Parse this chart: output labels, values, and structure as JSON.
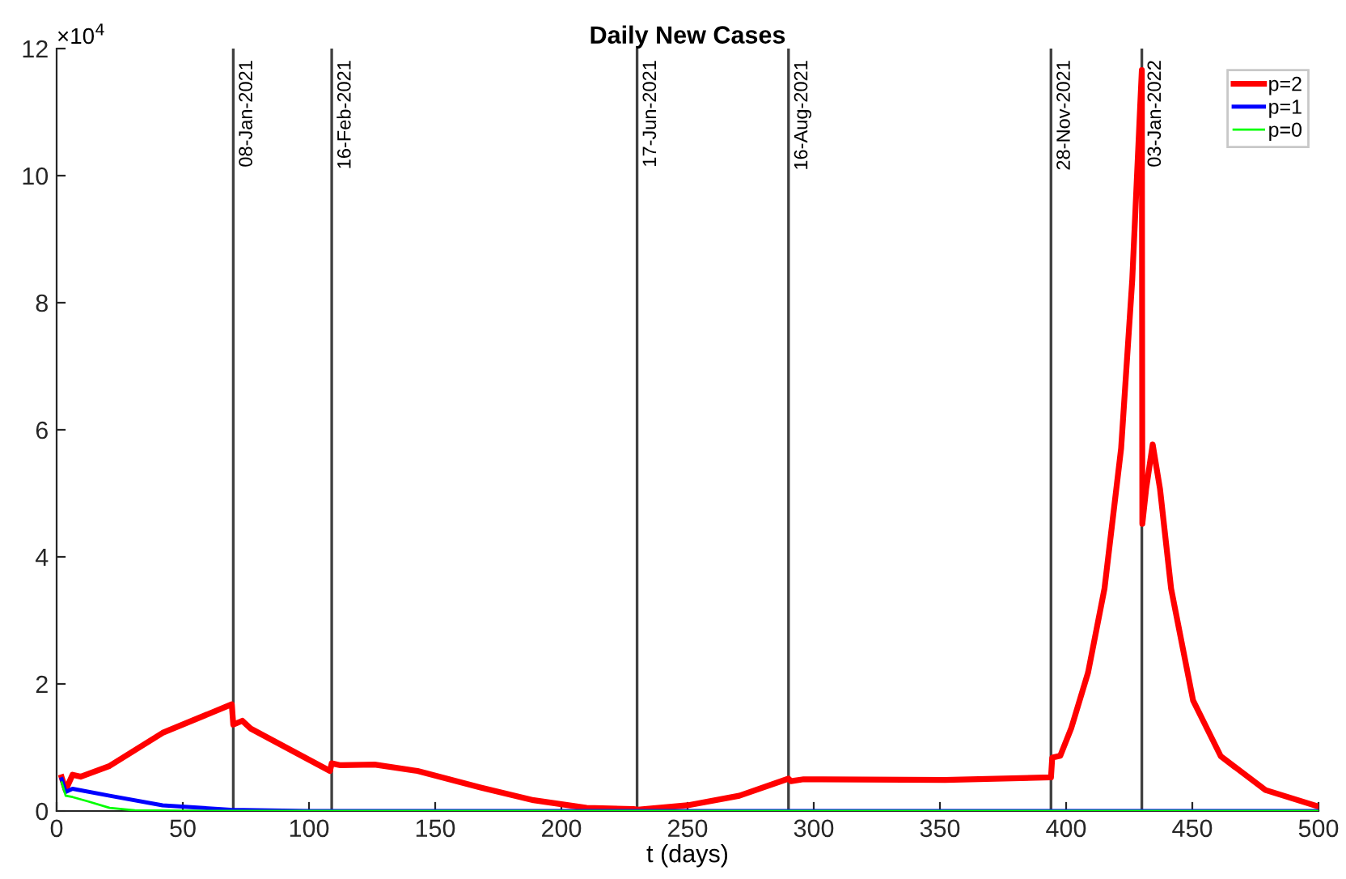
{
  "chart_data": {
    "type": "line",
    "title": "Daily New Cases",
    "xlabel": "t (days)",
    "xlim": [
      0,
      500
    ],
    "xticks": [
      0,
      50,
      100,
      150,
      200,
      250,
      300,
      350,
      400,
      450,
      500
    ],
    "ylim": [
      0,
      12
    ],
    "yticks": [
      0,
      2,
      4,
      6,
      8,
      10,
      12
    ],
    "annotations": [
      "×10$^{4}$"
    ],
    "legend": "top right",
    "grid": false,
    "marker": "none",
    "line_style": "solid",
    "series": [
      {
        "name": "p=2",
        "color": "#ff0000",
        "x": [
          2,
          3.6,
          6.3,
          9.5,
          21,
          42,
          69.4,
          70,
          73.6,
          76.8,
          108.3,
          109,
          112.5,
          126,
          143,
          168,
          189,
          210,
          228.6,
          230.3,
          250,
          270.5,
          290,
          291,
          296,
          352,
          394,
          394.5,
          397.7,
          402,
          408.7,
          415.2,
          421.8,
          426.2,
          430,
          430.2,
          431.7,
          434.3,
          437.2,
          441.6,
          450.3,
          461.3,
          479,
          500
        ],
        "values": [
          0.53,
          0.33,
          0.57,
          0.54,
          0.71,
          1.23,
          1.68,
          1.36,
          1.42,
          1.3,
          0.63,
          0.75,
          0.72,
          0.73,
          0.63,
          0.37,
          0.17,
          0.05,
          0.03,
          0.02,
          0.09,
          0.24,
          0.51,
          0.47,
          0.5,
          0.49,
          0.53,
          0.84,
          0.87,
          1.3,
          2.18,
          3.5,
          5.71,
          8.36,
          11.66,
          4.52,
          5.07,
          5.77,
          5.07,
          3.5,
          1.74,
          0.86,
          0.33,
          0.07
        ]
      },
      {
        "name": "p=1",
        "color": "#0000ff",
        "x": [
          2,
          3.6,
          6.3,
          21,
          42,
          69,
          100,
          500
        ],
        "values": [
          0.5,
          0.3,
          0.35,
          0.24,
          0.09,
          0.02,
          0,
          0
        ]
      },
      {
        "name": "p=0",
        "color": "#00ff00",
        "x": [
          2,
          3.6,
          6.3,
          12.6,
          21,
          31,
          60,
          500
        ],
        "values": [
          0.45,
          0.24,
          0.22,
          0.15,
          0.05,
          0.01,
          0,
          0
        ]
      }
    ],
    "ref_lines": [
      {
        "axis": "x",
        "value": 70,
        "label": "08-Jan-2021",
        "color": "#404040"
      },
      {
        "axis": "x",
        "value": 109,
        "label": "16-Feb-2021",
        "color": "#404040"
      },
      {
        "axis": "x",
        "value": 230,
        "label": "17-Jun-2021",
        "color": "#404040"
      },
      {
        "axis": "x",
        "value": 290,
        "label": "16-Aug-2021",
        "color": "#404040"
      },
      {
        "axis": "x",
        "value": 394,
        "label": "28-Nov-2021",
        "color": "#404040"
      },
      {
        "axis": "x",
        "value": 430,
        "label": "03-Jan-2022",
        "color": "#404040"
      }
    ]
  }
}
